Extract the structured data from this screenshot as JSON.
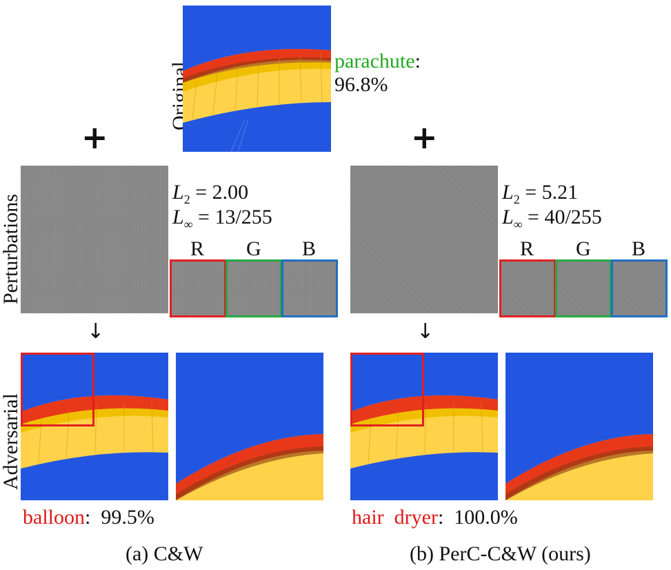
{
  "original": {
    "label": "Original",
    "class_name": "parachute",
    "colon": ":",
    "confidence": "96.8%"
  },
  "plus_symbol": "+",
  "arrow_symbol": "↓",
  "row_labels": {
    "perturbations": "Perturbations",
    "adversarial": "Adversarial"
  },
  "cw": {
    "l2_label": "L",
    "l2_sub": "2",
    "l2_value": "=  2.00",
    "linf_label": "L",
    "linf_sub": "∞",
    "linf_value": "= 13/255",
    "channels": [
      "R",
      "G",
      "B"
    ],
    "pred_class": "balloon",
    "pred_colon": ":",
    "pred_conf": "99.5%",
    "caption": "(a) C&W"
  },
  "perc": {
    "l2_label": "L",
    "l2_sub": "2",
    "l2_value": "=  5.21",
    "linf_label": "L",
    "linf_sub": "∞",
    "linf_value": "= 40/255",
    "channels": [
      "R",
      "G",
      "B"
    ],
    "pred_class": "hair  dryer",
    "pred_colon": ":",
    "pred_conf": "100.0%",
    "caption": "(b) PerC-C&W (ours)"
  },
  "colors": {
    "sky": "#2356e0",
    "canopy_yellow": "#ffd700",
    "canopy_red": "#e8381a",
    "channel_R": "#e02020",
    "channel_G": "#22aa44",
    "channel_B": "#1f6fc0",
    "highlight_box": "#e02020",
    "label_red": "#e01818",
    "label_green": "#22aa22"
  }
}
